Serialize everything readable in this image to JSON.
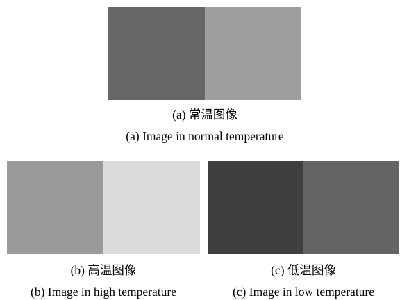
{
  "figure": {
    "panel_a": {
      "caption_cn": "(a) 常温图像",
      "caption_en": "(a) Image in normal temperature",
      "left_color": "#666666",
      "right_color": "#9e9e9e"
    },
    "panel_b": {
      "caption_cn": "(b) 高温图像",
      "caption_en": "(b) Image in high temperature",
      "left_color": "#9a9a9a",
      "right_color": "#dcdcdc"
    },
    "panel_c": {
      "caption_cn": "(c) 低温图像",
      "caption_en": "(c) Image in low temperature",
      "left_color": "#3f3f3f",
      "right_color": "#646464"
    }
  }
}
